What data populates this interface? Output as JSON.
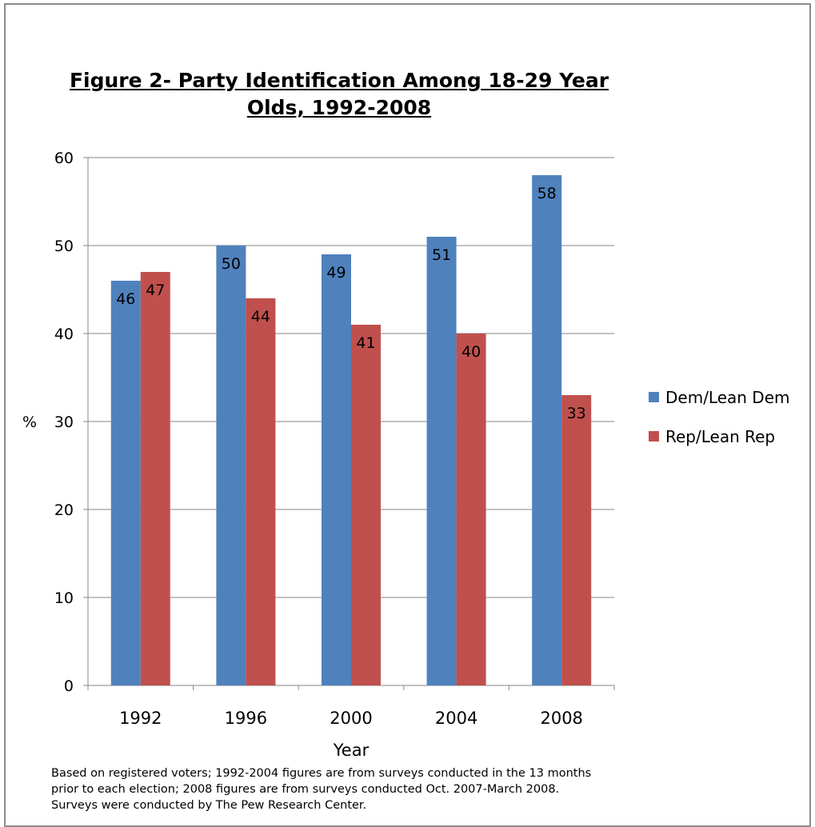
{
  "chart_data": {
    "type": "bar",
    "title": [
      "Figure 2- Party Identification Among 18-29 Year",
      "Olds, 1992-2008"
    ],
    "xlabel": "Year",
    "ylabel": "%",
    "categories": [
      "1992",
      "1996",
      "2000",
      "2004",
      "2008"
    ],
    "series": [
      {
        "name": "Dem/Lean Dem",
        "color": "#4f81bd",
        "values": [
          46,
          50,
          49,
          51,
          58
        ]
      },
      {
        "name": "Rep/Lean Rep",
        "color": "#c0504d",
        "values": [
          47,
          44,
          41,
          40,
          33
        ]
      }
    ],
    "ylim": [
      0,
      60
    ],
    "yticks": [
      "0",
      "10",
      "20",
      "30",
      "40",
      "50",
      "60"
    ],
    "grid": true,
    "legend": "right",
    "data_labels": true
  },
  "footnote": [
    "Based on registered voters; 1992-2004 figures are from surveys conducted in the 13 months",
    "prior to each election; 2008 figures are from surveys conducted Oct. 2007-March 2008.",
    "Surveys were conducted by The Pew Research Center."
  ]
}
